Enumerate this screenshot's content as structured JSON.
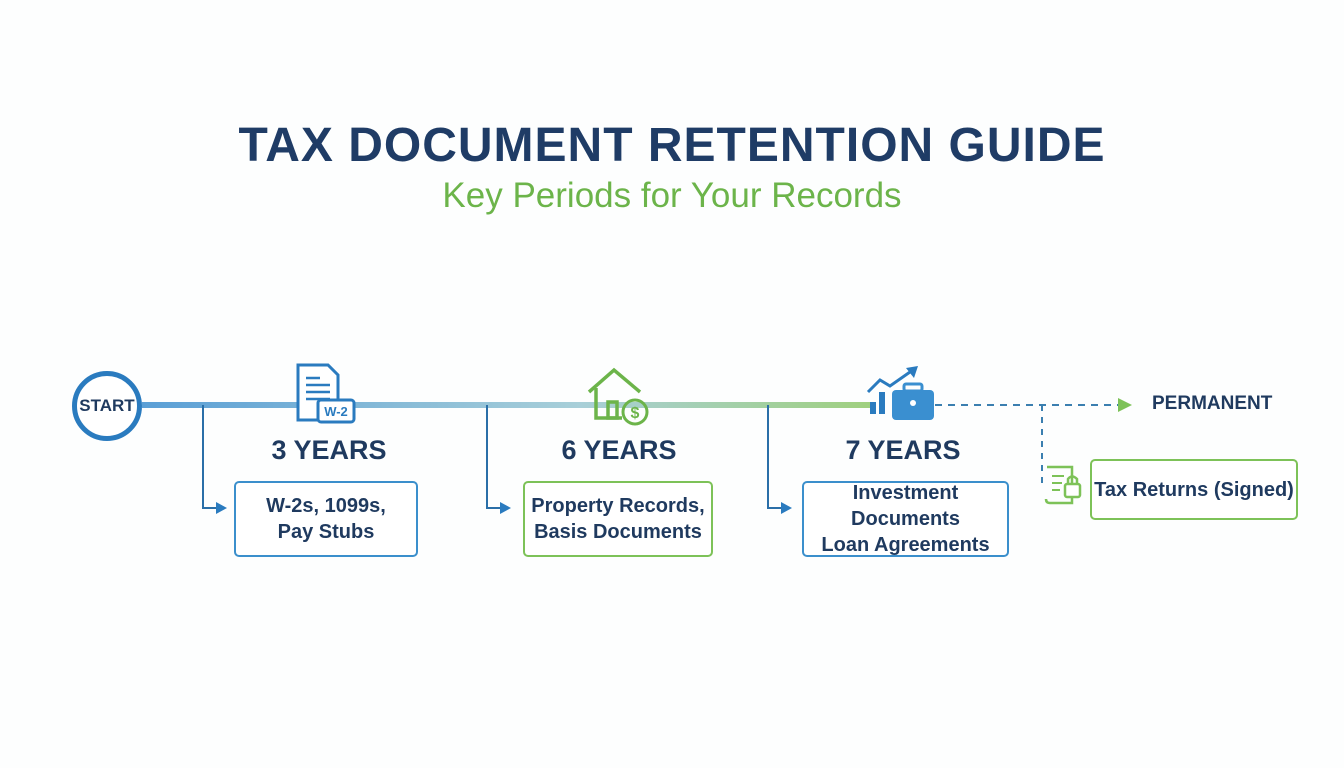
{
  "header": {
    "title": "TAX DOCUMENT RETENTION GUIDE",
    "subtitle": "Key Periods for Your Records"
  },
  "timeline": {
    "start_label": "START",
    "colors": {
      "blue": "#2a7bbf",
      "green": "#7dc258",
      "navy": "#1f3a5f"
    },
    "stages": [
      {
        "period": "3 YEARS",
        "documents": "W-2s, 1099s,\nPay Stubs",
        "icon": "w2-document-icon",
        "icon_text": "W-2"
      },
      {
        "period": "6 YEARS",
        "documents": "Property Records,\nBasis Documents",
        "icon": "house-dollar-icon"
      },
      {
        "period": "7 YEARS",
        "documents": "Investment Documents\nLoan Agreements",
        "icon": "briefcase-chart-icon"
      }
    ],
    "permanent": {
      "period": "PERMANENT",
      "documents": "Tax Returns (Signed)",
      "icon": "scroll-lock-icon"
    }
  }
}
